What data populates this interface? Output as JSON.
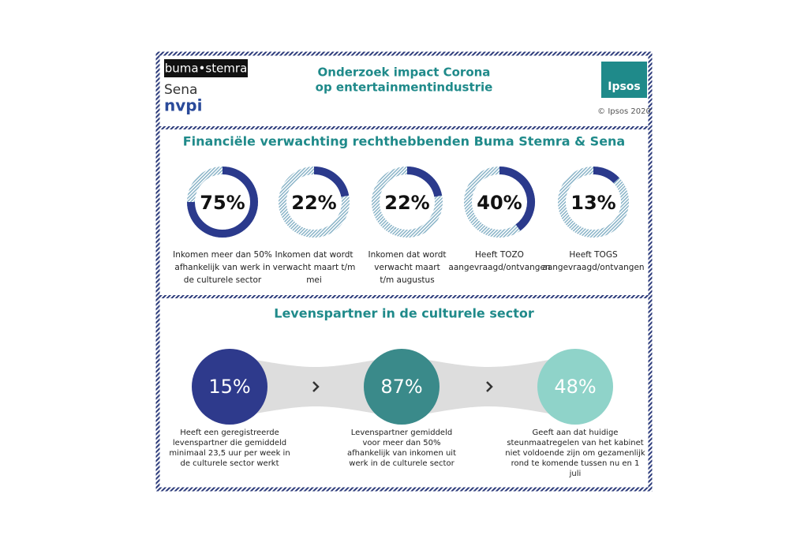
{
  "header": {
    "logos": [
      "buma•stemra",
      "Sena",
      "nvpi"
    ],
    "title_lines": [
      "Onderzoek impact Corona",
      "op entertainmentindustrie"
    ],
    "brand": "Ipsos",
    "copyright": "© Ipsos 2020"
  },
  "financial": {
    "title": "Financiële verwachting rechthebbenden Buma Stemra & Sena",
    "items": [
      {
        "value": 75,
        "label": "75%",
        "caption": [
          "Inkomen meer dan 50%",
          "afhankelijk van werk in",
          "de culturele sector"
        ]
      },
      {
        "value": 22,
        "label": "22%",
        "caption": [
          "Inkomen dat wordt",
          "verwacht maart t/m",
          "mei"
        ]
      },
      {
        "value": 22,
        "label": "22%",
        "caption": [
          "Inkomen dat wordt",
          "verwacht maart",
          "t/m augustus"
        ]
      },
      {
        "value": 40,
        "label": "40%",
        "caption": [
          "Heeft TOZO",
          "aangevraagd/ontvangen"
        ]
      },
      {
        "value": 13,
        "label": "13%",
        "caption": [
          "Heeft TOGS",
          "aangevraagd/ontvangen"
        ]
      }
    ]
  },
  "partner": {
    "title": "Levenspartner in de culturele sector",
    "items": [
      {
        "label": "15%",
        "caption": [
          "Heeft een geregistreerde",
          "levenspartner die gemiddeld",
          "minimaal 23,5 uur per week in",
          "de culturele sector werkt"
        ]
      },
      {
        "label": "87%",
        "caption": [
          "Levenspartner gemiddeld",
          "voor meer dan 50%",
          "afhankelijk van inkomen uit",
          "werk in de culturele sector"
        ]
      },
      {
        "label": "48%",
        "caption": [
          "Geeft aan dat huidige",
          "steunmaatregelen van het kabinet",
          "niet voldoende zijn om gezamenlijk",
          "rond te komende tussen nu en 1",
          "juli"
        ]
      }
    ]
  }
}
